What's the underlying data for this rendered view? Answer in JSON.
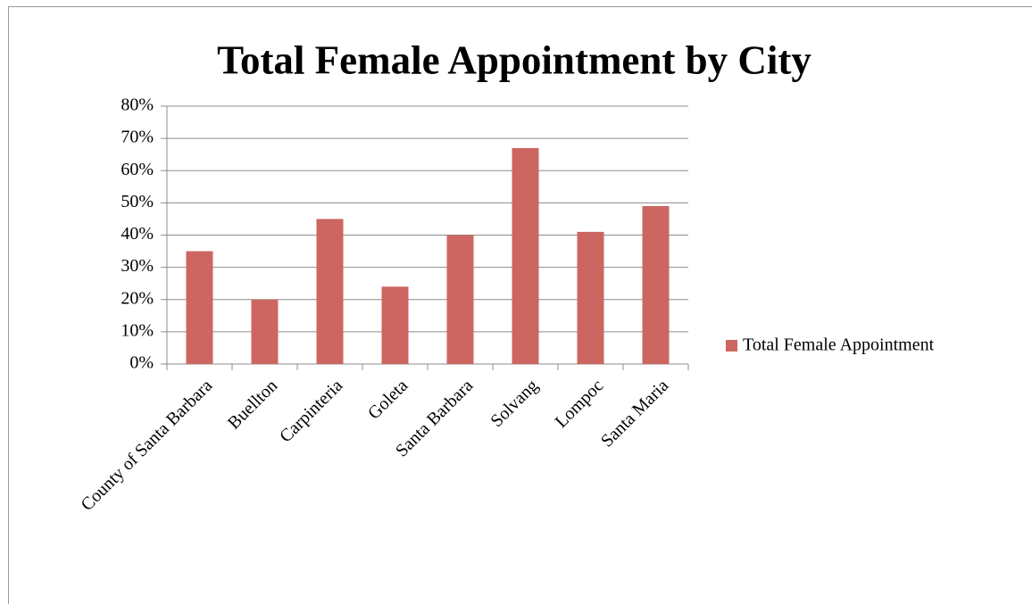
{
  "chart_data": {
    "type": "bar",
    "title": "Total Female Appointment by City",
    "categories": [
      "County of Santa Barbara",
      "Buellton",
      "Carpinteria",
      "Goleta",
      "Santa Barbara",
      "Solvang",
      "Lompoc",
      "Santa Maria"
    ],
    "series": [
      {
        "name": "Total Female Appointment",
        "color": "#cd6660",
        "values": [
          35,
          20,
          45,
          24,
          40,
          67,
          41,
          49
        ]
      }
    ],
    "ylim": [
      0,
      80
    ],
    "yticks": [
      {
        "value": 0,
        "label": "0%"
      },
      {
        "value": 10,
        "label": "10%"
      },
      {
        "value": 20,
        "label": "20%"
      },
      {
        "value": 30,
        "label": "30%"
      },
      {
        "value": 40,
        "label": "40%"
      },
      {
        "value": 50,
        "label": "50%"
      },
      {
        "value": 60,
        "label": "60%"
      },
      {
        "value": 70,
        "label": "70%"
      },
      {
        "value": 80,
        "label": "80%"
      }
    ],
    "grid": true,
    "legend": "right"
  }
}
